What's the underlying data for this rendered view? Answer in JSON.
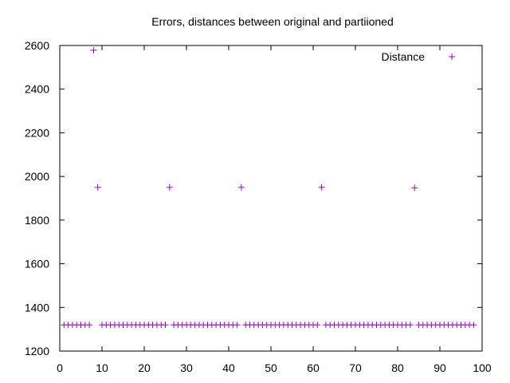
{
  "chart_data": {
    "type": "scatter",
    "title": "Errors, distances between original and partiioned",
    "xlabel": "",
    "ylabel": "",
    "xlim": [
      0,
      100
    ],
    "ylim": [
      1200,
      2600
    ],
    "x_ticks": [
      "0",
      "10",
      "20",
      "30",
      "40",
      "50",
      "60",
      "70",
      "80",
      "90",
      "100"
    ],
    "y_ticks": [
      "1200",
      "1400",
      "1600",
      "1800",
      "2000",
      "2200",
      "2400",
      "2600"
    ],
    "grid": false,
    "legend_position": "top-right",
    "marker": "plus",
    "color": "#9400d3",
    "series": [
      {
        "name": "Distance",
        "x": [
          1,
          2,
          3,
          4,
          5,
          6,
          7,
          8,
          9,
          10,
          11,
          12,
          13,
          14,
          15,
          16,
          17,
          18,
          19,
          20,
          21,
          22,
          23,
          24,
          25,
          26,
          27,
          28,
          29,
          30,
          31,
          32,
          33,
          34,
          35,
          36,
          37,
          38,
          39,
          40,
          41,
          42,
          43,
          44,
          45,
          46,
          47,
          48,
          49,
          50,
          51,
          52,
          53,
          54,
          55,
          56,
          57,
          58,
          59,
          60,
          61,
          62,
          63,
          64,
          65,
          66,
          67,
          68,
          69,
          70,
          71,
          72,
          73,
          74,
          75,
          76,
          77,
          78,
          79,
          80,
          81,
          82,
          83,
          84,
          85,
          86,
          87,
          88,
          89,
          90,
          91,
          92,
          93,
          94,
          95,
          96,
          97,
          98
        ],
        "y": [
          1320,
          1320,
          1320,
          1320,
          1320,
          1320,
          1320,
          2578,
          1950,
          1320,
          1320,
          1320,
          1320,
          1320,
          1320,
          1320,
          1320,
          1320,
          1320,
          1320,
          1320,
          1320,
          1320,
          1320,
          1320,
          1950,
          1320,
          1320,
          1320,
          1320,
          1320,
          1320,
          1320,
          1320,
          1320,
          1320,
          1320,
          1320,
          1320,
          1320,
          1320,
          1320,
          1950,
          1320,
          1320,
          1320,
          1320,
          1320,
          1320,
          1320,
          1320,
          1320,
          1320,
          1320,
          1320,
          1320,
          1320,
          1320,
          1320,
          1320,
          1320,
          1950,
          1320,
          1320,
          1320,
          1320,
          1320,
          1320,
          1320,
          1320,
          1320,
          1320,
          1320,
          1320,
          1320,
          1320,
          1320,
          1320,
          1320,
          1320,
          1320,
          1320,
          1320,
          1948,
          1320,
          1320,
          1320,
          1320,
          1320,
          1320,
          1320,
          1320,
          1320,
          1320,
          1320,
          1320,
          1320,
          1320
        ]
      }
    ]
  }
}
